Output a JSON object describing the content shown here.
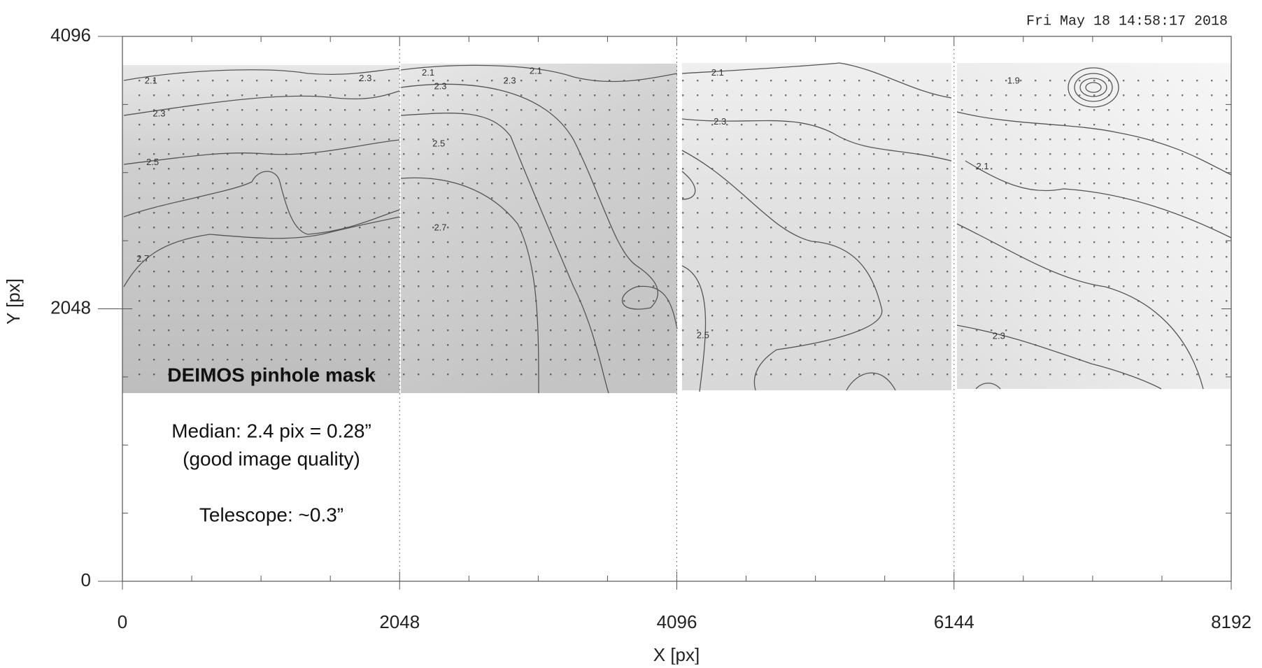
{
  "chart_data": {
    "type": "contour",
    "timestamp": "Fri May 18 14:58:17 2018",
    "xlabel": "X [px]",
    "ylabel": "Y [px]",
    "xlim": [
      0,
      8192
    ],
    "ylim": [
      0,
      4096
    ],
    "xticks": [
      0,
      2048,
      4096,
      6144,
      8192
    ],
    "yticks": [
      0,
      2048,
      4096
    ],
    "xgrid": true,
    "annotations": [
      "DEIMOS pinhole mask",
      "Median: 2.4 pix = 0.28”",
      "(good image quality)",
      "Telescope: ~0.3”"
    ],
    "contour_labels": [
      {
        "value": 2.1,
        "x": 211,
        "y": 3759
      },
      {
        "value": 2.3,
        "x": 271,
        "y": 3513
      },
      {
        "value": 2.5,
        "x": 223,
        "y": 3146
      },
      {
        "value": 2.7,
        "x": 151,
        "y": 2422
      },
      {
        "value": 2.3,
        "x": 1795,
        "y": 3777
      },
      {
        "value": 2.1,
        "x": 2259,
        "y": 3820
      },
      {
        "value": 2.3,
        "x": 2349,
        "y": 3716
      },
      {
        "value": 2.3,
        "x": 2861,
        "y": 3759
      },
      {
        "value": 2.1,
        "x": 3054,
        "y": 3832
      },
      {
        "value": 2.5,
        "x": 2337,
        "y": 3287
      },
      {
        "value": 2.7,
        "x": 2349,
        "y": 2655
      },
      {
        "value": 2.1,
        "x": 4397,
        "y": 3820
      },
      {
        "value": 2.3,
        "x": 4415,
        "y": 3452
      },
      {
        "value": 2.5,
        "x": 4289,
        "y": 1846
      },
      {
        "value": 1.9,
        "x": 6584,
        "y": 3759
      },
      {
        "value": 2.1,
        "x": 6355,
        "y": 3115
      },
      {
        "value": 2.3,
        "x": 6475,
        "y": 1840
      }
    ]
  }
}
